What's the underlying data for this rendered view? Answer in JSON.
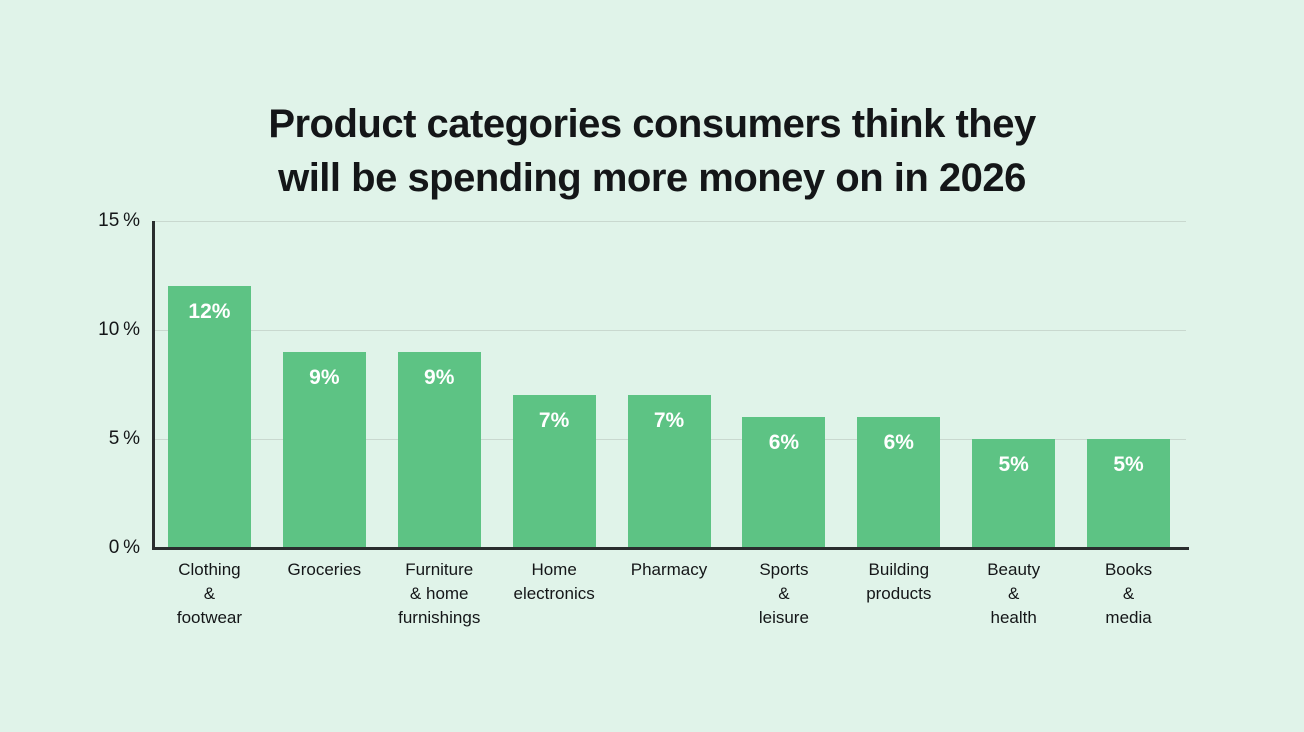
{
  "chart_data": {
    "type": "bar",
    "title": "Product categories consumers think they will be spending more money on in 2026",
    "title_lines": [
      "Product categories consumers think they",
      "will be spending more money on in 2026"
    ],
    "categories": [
      "Clothing & footwear",
      "Groceries",
      "Furniture & home furnishings",
      "Home electronics",
      "Pharmacy",
      "Sports & leisure",
      "Building products",
      "Beauty & health",
      "Books & media"
    ],
    "category_lines": [
      [
        "Clothing",
        "&",
        "footwear"
      ],
      [
        "Groceries"
      ],
      [
        "Furniture",
        "& home",
        "furnishings"
      ],
      [
        "Home",
        "electronics"
      ],
      [
        "Pharmacy"
      ],
      [
        "Sports",
        "&",
        "leisure"
      ],
      [
        "Building",
        "products"
      ],
      [
        "Beauty",
        "&",
        "health"
      ],
      [
        "Books",
        "&",
        "media"
      ]
    ],
    "values": [
      12,
      9,
      9,
      7,
      7,
      6,
      6,
      5,
      5
    ],
    "value_labels": [
      "12%",
      "9%",
      "9%",
      "7%",
      "7%",
      "6%",
      "6%",
      "5%",
      "5%"
    ],
    "unit": "%",
    "xlabel": "",
    "ylabel": "",
    "y_axis": {
      "min": 0,
      "max": 15,
      "ticks": [
        {
          "label": "0 %",
          "value": 0
        },
        {
          "label": "5 %",
          "value": 5
        },
        {
          "label": "10 %",
          "value": 10
        },
        {
          "label": "15 %",
          "value": 15
        }
      ]
    },
    "grid": "horizontal",
    "legend": "none",
    "colors": {
      "bar": "#5dc384",
      "background": "#e0f3e9",
      "value_label": "#ffffff",
      "text": "#141618",
      "gridline": "#c9d8cf",
      "axis": "#2a2d2e"
    }
  }
}
